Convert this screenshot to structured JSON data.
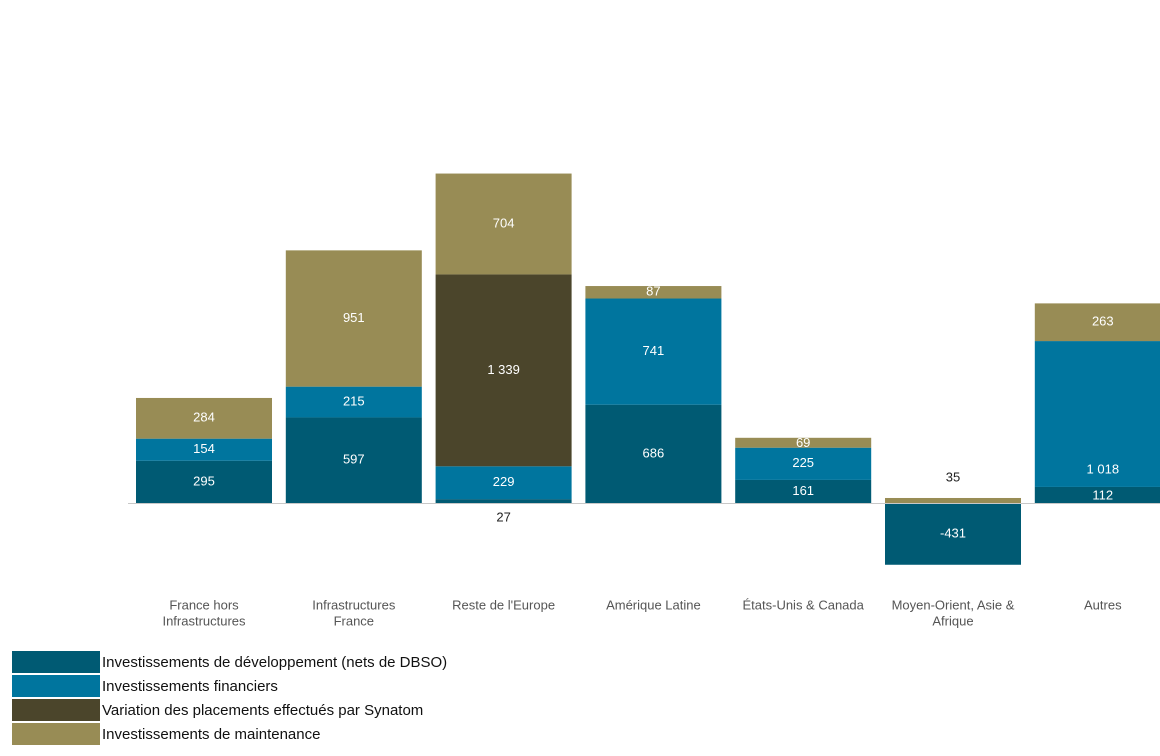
{
  "chart_data": {
    "type": "bar",
    "stacked": true,
    "title": "",
    "xlabel": "",
    "ylabel": "",
    "grid": false,
    "legend_position": "bottom-left",
    "categories": [
      [
        "France hors",
        "Infrastructures"
      ],
      [
        "Infrastructures",
        "France"
      ],
      [
        "Reste de l'Europe"
      ],
      [
        "Amérique Latine"
      ],
      [
        "États-Unis & Canada"
      ],
      [
        "Moyen-Orient, Asie &",
        "Afrique"
      ],
      [
        "Autres"
      ]
    ],
    "series": [
      {
        "name": "Investissements de développement (nets de DBSO)",
        "color": "#005a73",
        "values": [
          295,
          597,
          27,
          686,
          161,
          -431,
          112
        ],
        "labels": [
          "295",
          "597",
          "27",
          "686",
          "161",
          "-431",
          "112"
        ]
      },
      {
        "name": "Investissements financiers",
        "color": "#00759e",
        "values": [
          154,
          215,
          229,
          741,
          225,
          0,
          1018
        ],
        "labels": [
          "154",
          "215",
          "229",
          "741",
          "225",
          "",
          "1 018"
        ]
      },
      {
        "name": "Variation des placements effectués par Synatom",
        "color": "#4b452b",
        "values": [
          0,
          0,
          1339,
          0,
          0,
          0,
          0
        ],
        "labels": [
          "",
          "",
          "1 339",
          "",
          "",
          "",
          ""
        ]
      },
      {
        "name": "Investissements de maintenance",
        "color": "#988c55",
        "values": [
          284,
          951,
          704,
          87,
          69,
          35,
          263
        ],
        "labels": [
          "284",
          "951",
          "704",
          "87",
          "69",
          "35",
          "263"
        ]
      }
    ]
  }
}
